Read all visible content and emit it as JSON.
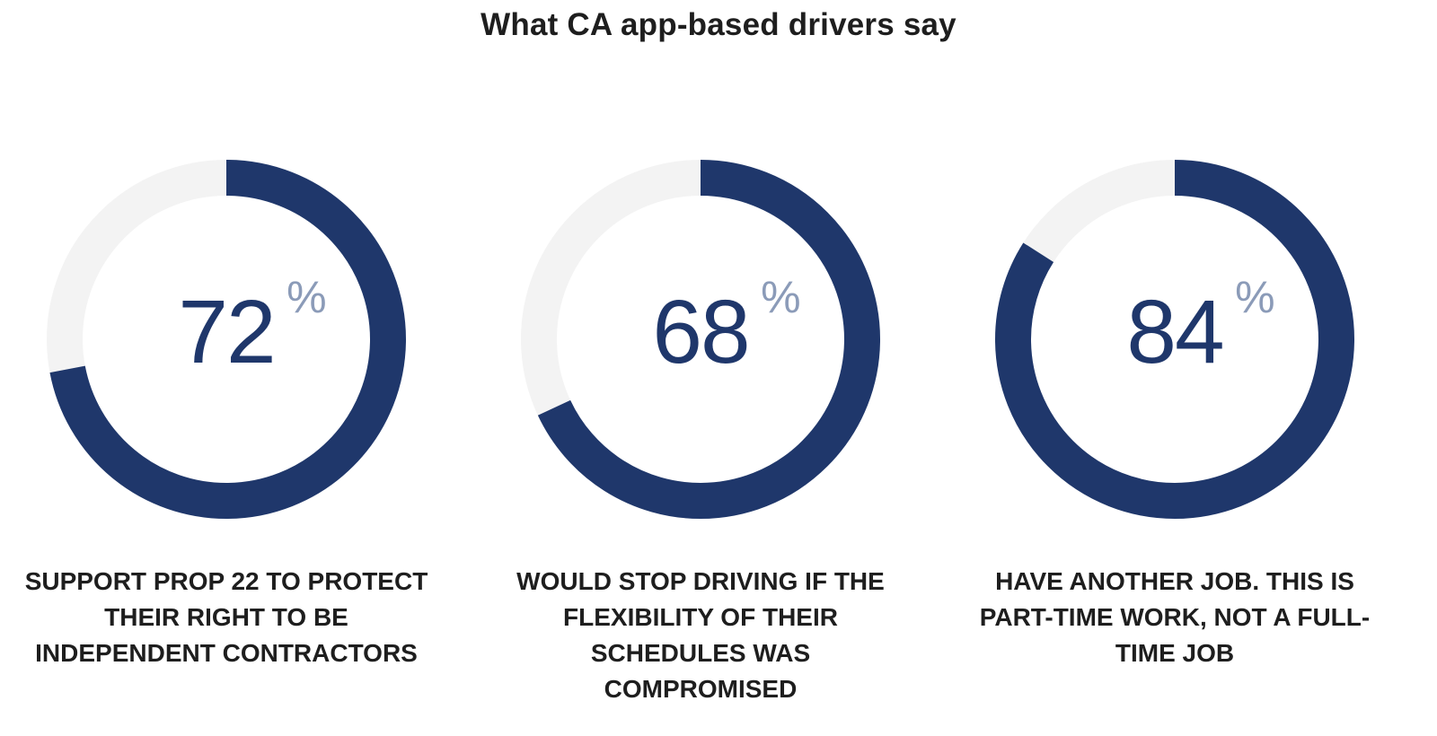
{
  "title": "What CA app-based drivers say",
  "colors": {
    "arc": "#1f376b",
    "track": "#f3f3f3",
    "number": "#1f376b",
    "percent_sign": "#8b9bb8",
    "text": "#1e1e1e"
  },
  "chart_data": {
    "type": "pie",
    "title": "What CA app-based drivers say",
    "max": 100,
    "items": [
      {
        "value": 72,
        "label": "72",
        "unit": "%",
        "caption": [
          "SUPPORT PROP 22 TO PROTECT",
          "THEIR RIGHT TO BE",
          "INDEPENDENT CONTRACTORS"
        ]
      },
      {
        "value": 68,
        "label": "68",
        "unit": "%",
        "caption": [
          "WOULD STOP DRIVING IF THE",
          "FLEXIBILITY OF THEIR",
          "SCHEDULES WAS",
          "COMPROMISED"
        ]
      },
      {
        "value": 84,
        "label": "84",
        "unit": "%",
        "caption": [
          "HAVE ANOTHER JOB. THIS IS",
          "PART-TIME WORK, NOT A FULL-",
          "TIME JOB"
        ]
      }
    ]
  }
}
